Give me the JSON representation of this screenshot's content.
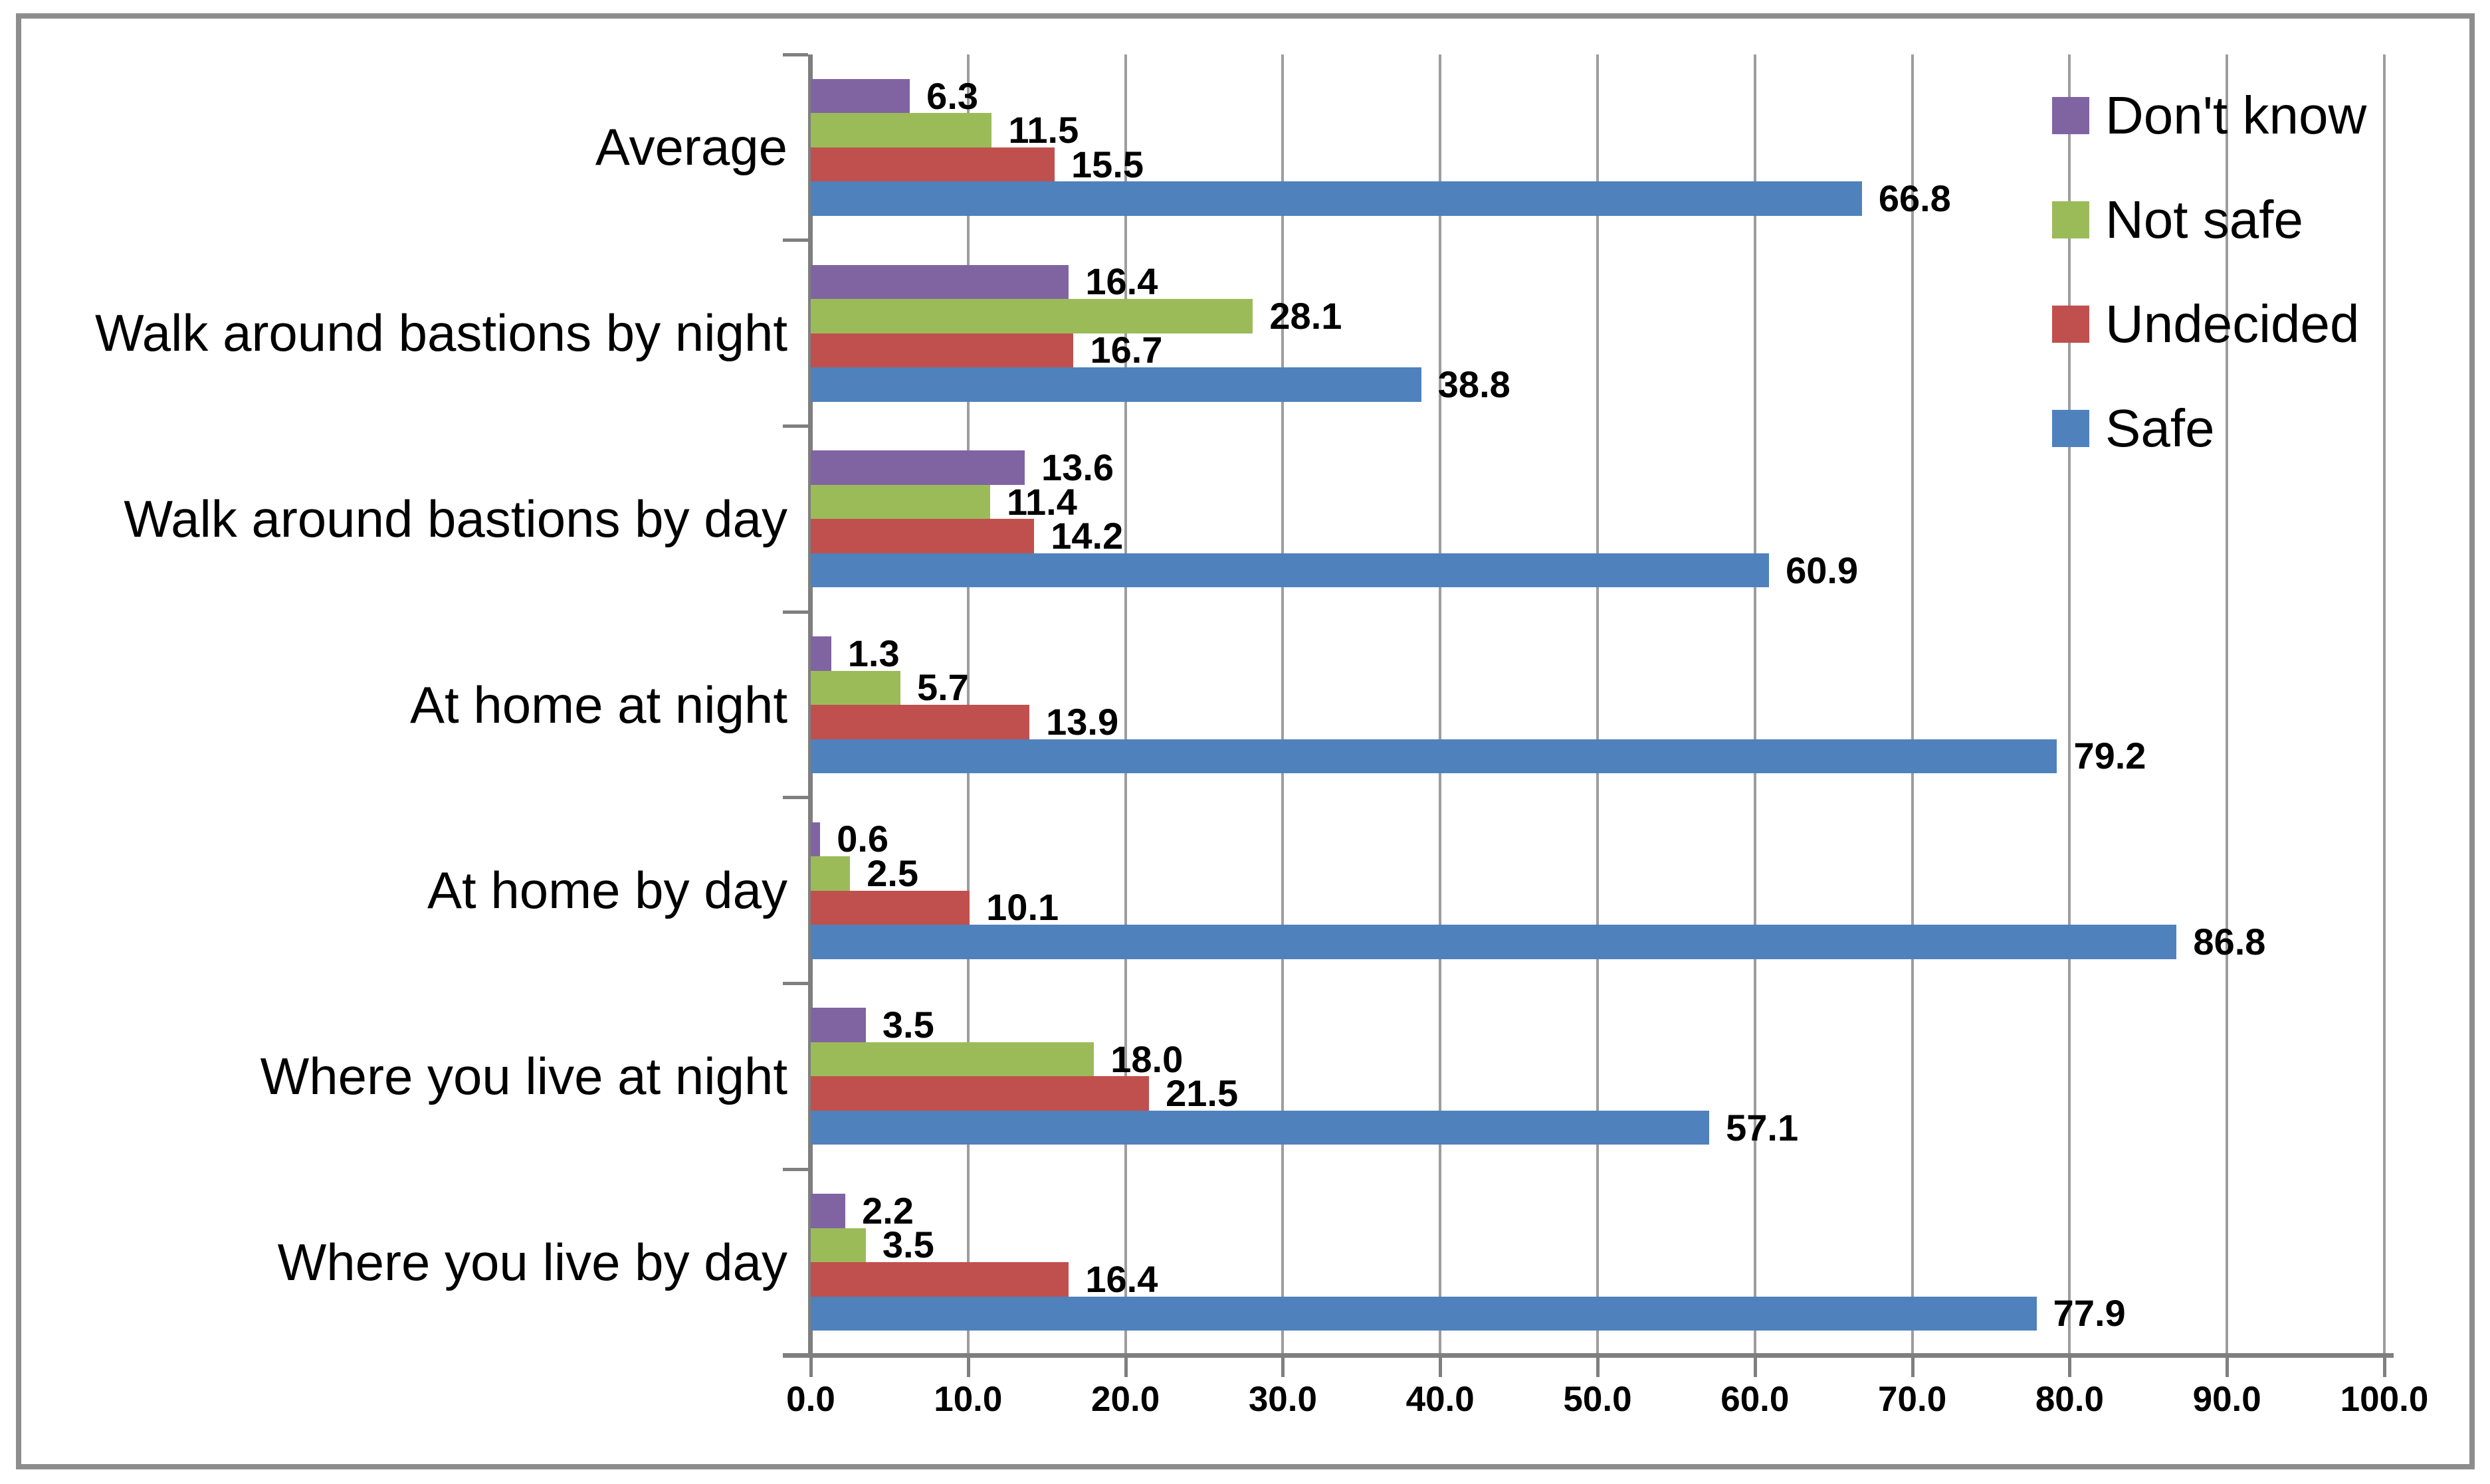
{
  "chart_data": {
    "type": "bar",
    "orientation": "horizontal",
    "categories": [
      "Average",
      "Walk around bastions by night",
      "Walk around bastions by day",
      "At home at night",
      "At home by day",
      "Where you live at night",
      "Where you live by day"
    ],
    "series": [
      {
        "name": "Don't know",
        "color": "#8064A2",
        "values": [
          6.3,
          16.4,
          13.6,
          1.3,
          0.6,
          3.5,
          2.2
        ]
      },
      {
        "name": "Not safe",
        "color": "#9BBB59",
        "values": [
          11.5,
          28.1,
          11.4,
          5.7,
          2.5,
          18.0,
          3.5
        ]
      },
      {
        "name": "Undecided",
        "color": "#C0504D",
        "values": [
          15.5,
          16.7,
          14.2,
          13.9,
          10.1,
          21.5,
          16.4
        ]
      },
      {
        "name": "Safe",
        "color": "#4F81BD",
        "values": [
          66.8,
          38.8,
          60.9,
          79.2,
          86.8,
          57.1,
          77.9
        ]
      }
    ],
    "x_axis": {
      "min": 0,
      "max": 100,
      "step": 10,
      "tick_labels": [
        "0.0",
        "10.0",
        "20.0",
        "30.0",
        "40.0",
        "50.0",
        "60.0",
        "70.0",
        "80.0",
        "90.0",
        "100.0"
      ]
    },
    "data_labels": true,
    "data_label_decimals": 1,
    "grid": true,
    "legend_position": "top-right",
    "colors": {
      "grid_line": "#9d9d9d",
      "axis_line": "#7f7f7f",
      "chart_border": "#8d8d8d",
      "label_text": "#000000",
      "background": "#ffffff"
    }
  }
}
